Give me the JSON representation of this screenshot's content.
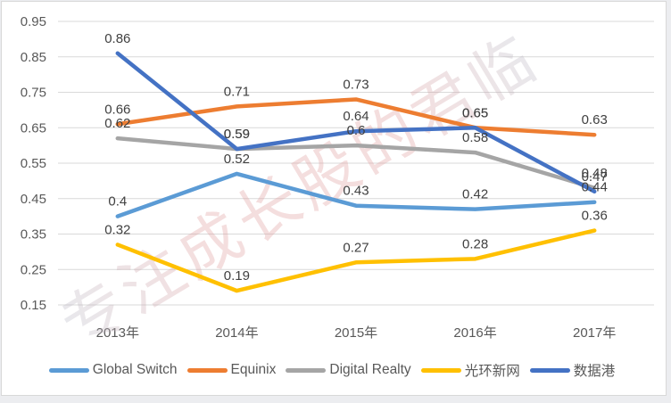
{
  "watermark": {
    "text": "专注成长股的君临",
    "color": "#e09a9a",
    "color_fade": "#b9bac7"
  },
  "axis_color": "#595959",
  "data_label_color": "#404040",
  "gridline_color": "#d9d9d9",
  "chart_data": {
    "type": "line",
    "categories": [
      "2013年",
      "2014年",
      "2015年",
      "2016年",
      "2017年"
    ],
    "series": [
      {
        "name": "Global Switch",
        "color": "#5B9BD5",
        "values": [
          0.4,
          0.52,
          0.43,
          0.42,
          0.44
        ],
        "labels": [
          "0.4",
          "0.52",
          "0.43",
          "0.42",
          "0.44"
        ]
      },
      {
        "name": "Equinix",
        "color": "#ED7D31",
        "values": [
          0.66,
          0.71,
          0.73,
          0.65,
          0.63
        ],
        "labels": [
          "0.66",
          "0.71",
          "0.73",
          "0.65",
          "0.63"
        ]
      },
      {
        "name": "Digital Realty",
        "color": "#A5A5A5",
        "values": [
          0.62,
          0.59,
          0.6,
          0.58,
          0.48
        ],
        "labels": [
          "0.62",
          "0.59",
          "0.6",
          "0.58",
          "0.48"
        ]
      },
      {
        "name": "光环新网",
        "color": "#FFC000",
        "values": [
          0.32,
          0.19,
          0.27,
          0.28,
          0.36
        ],
        "labels": [
          "0.32",
          "0.19",
          "0.27",
          "0.28",
          "0.36"
        ]
      },
      {
        "name": "数据港",
        "color": "#4472C4",
        "values": [
          0.86,
          0.59,
          0.64,
          0.65,
          0.47
        ],
        "labels": [
          "0.86",
          "0.59",
          "0.64",
          "0.65",
          "0.47"
        ]
      }
    ],
    "y_ticks": [
      "0.95",
      "0.85",
      "0.75",
      "0.65",
      "0.55",
      "0.45",
      "0.35",
      "0.25",
      "0.15"
    ],
    "ylim": [
      0.15,
      0.95
    ],
    "xlabel": "",
    "ylabel": "",
    "grid": true,
    "legend_position": "bottom"
  }
}
